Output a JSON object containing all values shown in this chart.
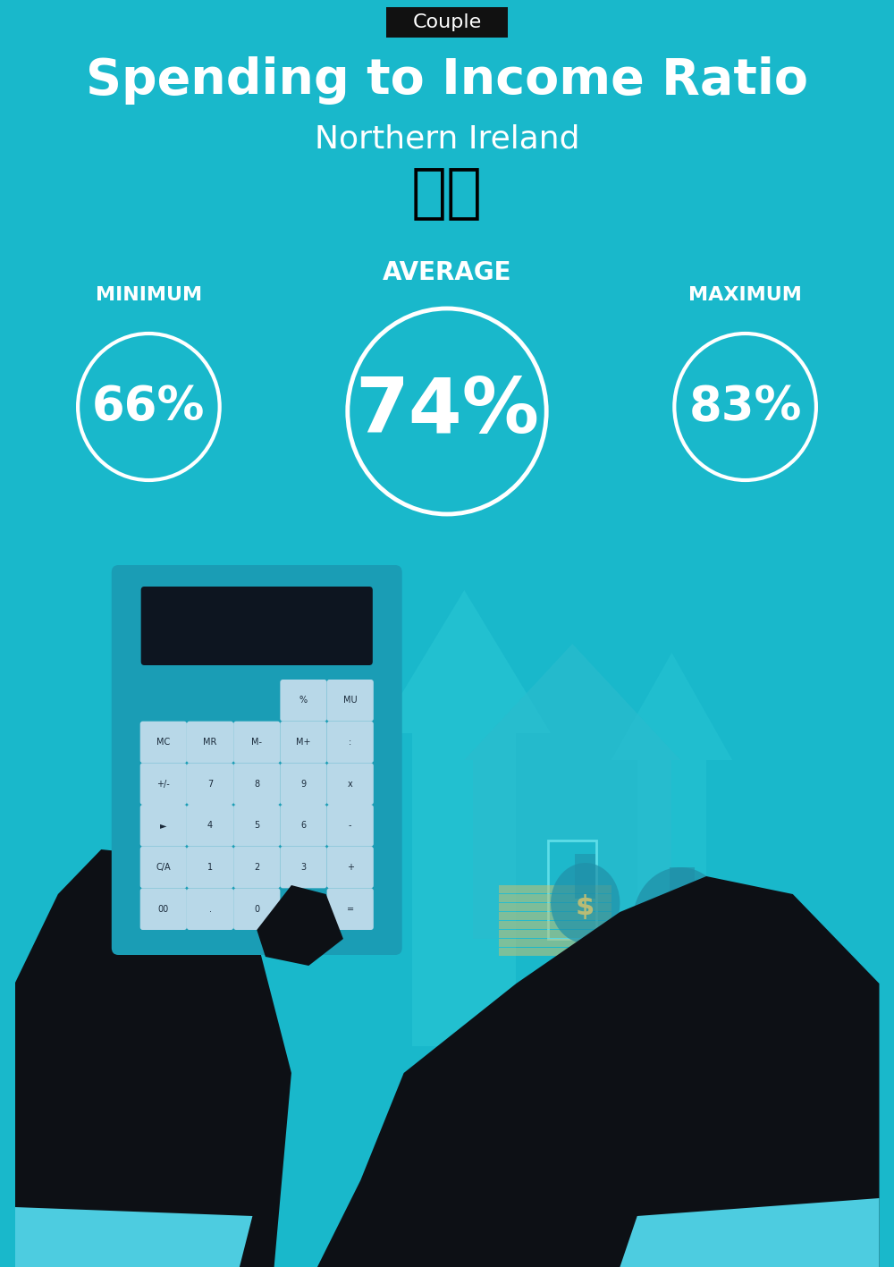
{
  "background_color": "#19b8cb",
  "tag_text": "Couple",
  "tag_bg": "#111111",
  "tag_text_color": "#ffffff",
  "title": "Spending to Income Ratio",
  "subtitle": "Northern Ireland",
  "title_color": "#ffffff",
  "subtitle_color": "#ffffff",
  "average_label": "AVERAGE",
  "minimum_label": "MINIMUM",
  "maximum_label": "MAXIMUM",
  "label_color": "#ffffff",
  "min_value": "66%",
  "avg_value": "74%",
  "max_value": "83%",
  "value_color": "#ffffff",
  "circle_edge_color": "#ffffff",
  "tag_fontsize": 16,
  "title_fontsize": 40,
  "subtitle_fontsize": 26,
  "avg_label_fontsize": 20,
  "min_max_label_fontsize": 16,
  "min_value_fontsize": 38,
  "avg_value_fontsize": 62,
  "max_value_fontsize": 38,
  "flag_fontsize": 48,
  "arrow_color": "#2ecad8",
  "house_color": "#2abcce",
  "calc_body_color": "#1a9db5",
  "calc_screen_color": "#0d1520",
  "calc_btn_color": "#b8d8e8",
  "hand_color": "#0d1015",
  "cuff_color": "#4dcce0",
  "money_color": "#c8c070",
  "bag_color": "#2090a8"
}
